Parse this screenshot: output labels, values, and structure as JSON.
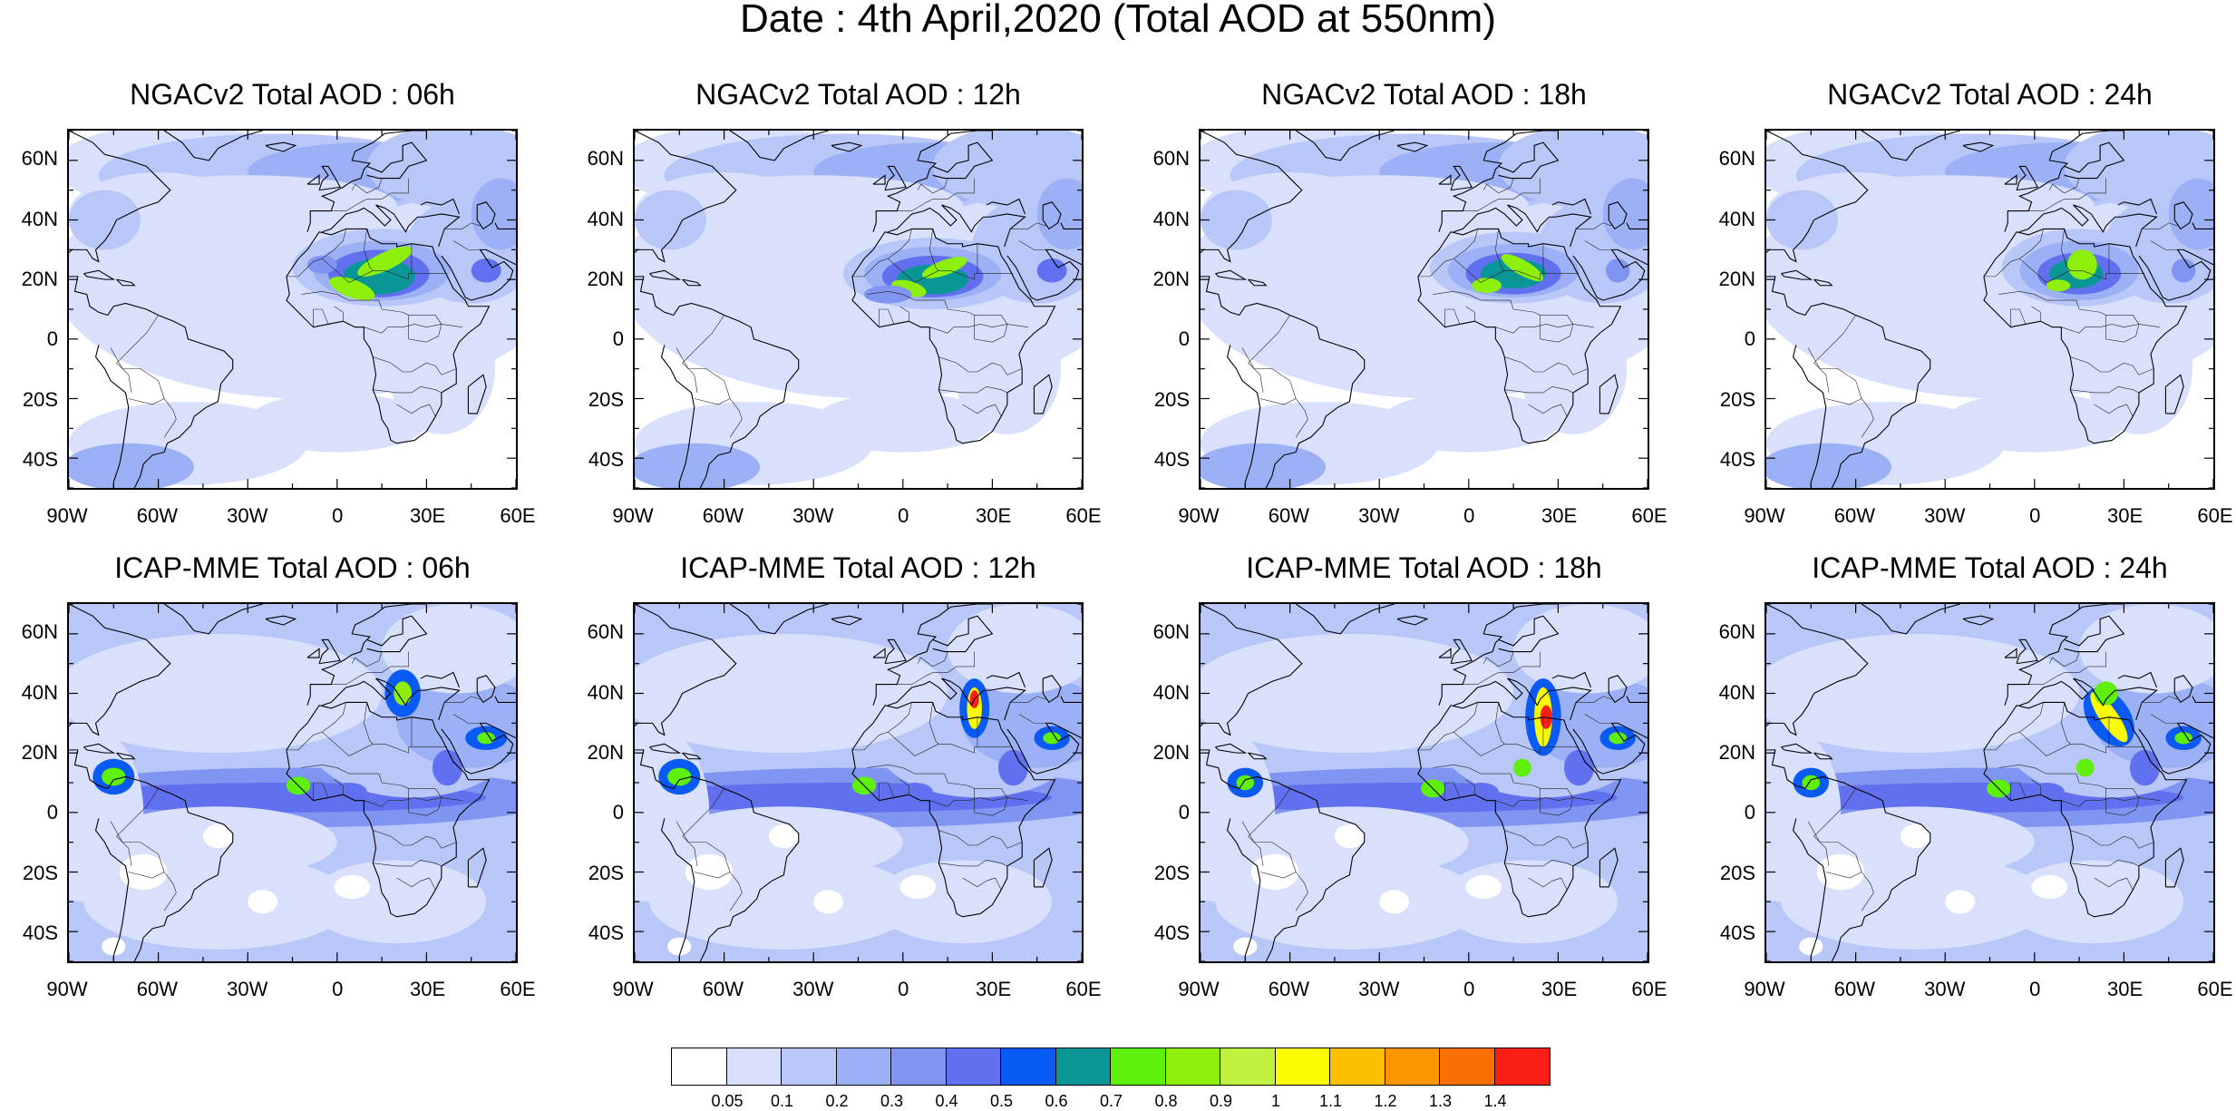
{
  "title": "Date : 4th April,2020 (Total AOD at 550nm)",
  "panels": [
    {
      "title": "NGACv2 Total AOD : 06h",
      "model": "NGACv2",
      "lead": "06h"
    },
    {
      "title": "NGACv2 Total AOD : 12h",
      "model": "NGACv2",
      "lead": "12h"
    },
    {
      "title": "NGACv2 Total AOD : 18h",
      "model": "NGACv2",
      "lead": "18h"
    },
    {
      "title": "NGACv2 Total AOD : 24h",
      "model": "NGACv2",
      "lead": "24h"
    },
    {
      "title": "ICAP-MME Total AOD : 06h",
      "model": "ICAP-MME",
      "lead": "06h"
    },
    {
      "title": "ICAP-MME Total AOD : 12h",
      "model": "ICAP-MME",
      "lead": "12h"
    },
    {
      "title": "ICAP-MME Total AOD : 18h",
      "model": "ICAP-MME",
      "lead": "18h"
    },
    {
      "title": "ICAP-MME Total AOD : 24h",
      "model": "ICAP-MME",
      "lead": "24h"
    }
  ],
  "lat_ticks": [
    "60N",
    "40N",
    "20N",
    "0",
    "20S",
    "40S"
  ],
  "lon_ticks": [
    "90W",
    "60W",
    "30W",
    "0",
    "30E",
    "60E"
  ],
  "colorbar": {
    "labels": [
      "0.05",
      "0.1",
      "0.2",
      "0.3",
      "0.4",
      "0.5",
      "0.6",
      "0.7",
      "0.8",
      "0.9",
      "1",
      "1.1",
      "1.2",
      "1.3",
      "1.4"
    ],
    "colors": [
      "#ffffff",
      "#d8e0fb",
      "#b8c6f8",
      "#9cb0f6",
      "#8094f2",
      "#6070ee",
      "#0a5af5",
      "#0a9696",
      "#5ef00a",
      "#8ef00a",
      "#c0f040",
      "#fafa00",
      "#fcc000",
      "#fc9600",
      "#fa7000",
      "#fa1e14"
    ]
  }
}
